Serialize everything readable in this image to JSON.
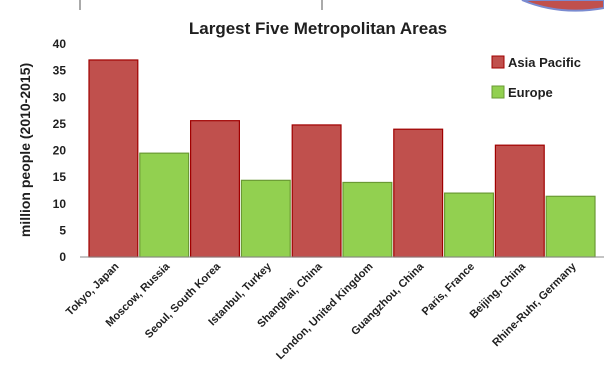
{
  "chart_data": {
    "type": "bar",
    "title": "Largest Five Metropolitan Areas",
    "ylabel": "million people (2010-2015)",
    "xlabel": "",
    "ylim": [
      0,
      40
    ],
    "yticks": [
      0,
      5,
      10,
      15,
      20,
      25,
      30,
      35,
      40
    ],
    "grid": false,
    "legend_position": "top-right",
    "categories": [
      "Tokyo, Japan",
      "Moscow, Russia",
      "Seoul, South Korea",
      "Istanbul, Turkey",
      "Shanghai, China",
      "London, United Kingdom",
      "Guangzhou, China",
      "Paris, France",
      "Beijing, China",
      "Rhine-Ruhr, Germany"
    ],
    "series": [
      {
        "name": "Asia Pacific",
        "color": "#c0504d",
        "border": "#a00000",
        "bars": [
          {
            "category": "Tokyo, Japan",
            "value": 37
          },
          {
            "category": "Seoul, South Korea",
            "value": 25.6
          },
          {
            "category": "Shanghai, China",
            "value": 24.8
          },
          {
            "category": "Guangzhou, China",
            "value": 24
          },
          {
            "category": "Beijing, China",
            "value": 21
          }
        ]
      },
      {
        "name": "Europe",
        "color": "#92d050",
        "border": "#6a9a34",
        "bars": [
          {
            "category": "Moscow, Russia",
            "value": 19.5
          },
          {
            "category": "Istanbul, Turkey",
            "value": 14.4
          },
          {
            "category": "London, United Kingdom",
            "value": 14
          },
          {
            "category": "Paris, France",
            "value": 12
          },
          {
            "category": "Rhine-Ruhr, Germany",
            "value": 11.4
          }
        ]
      }
    ]
  }
}
